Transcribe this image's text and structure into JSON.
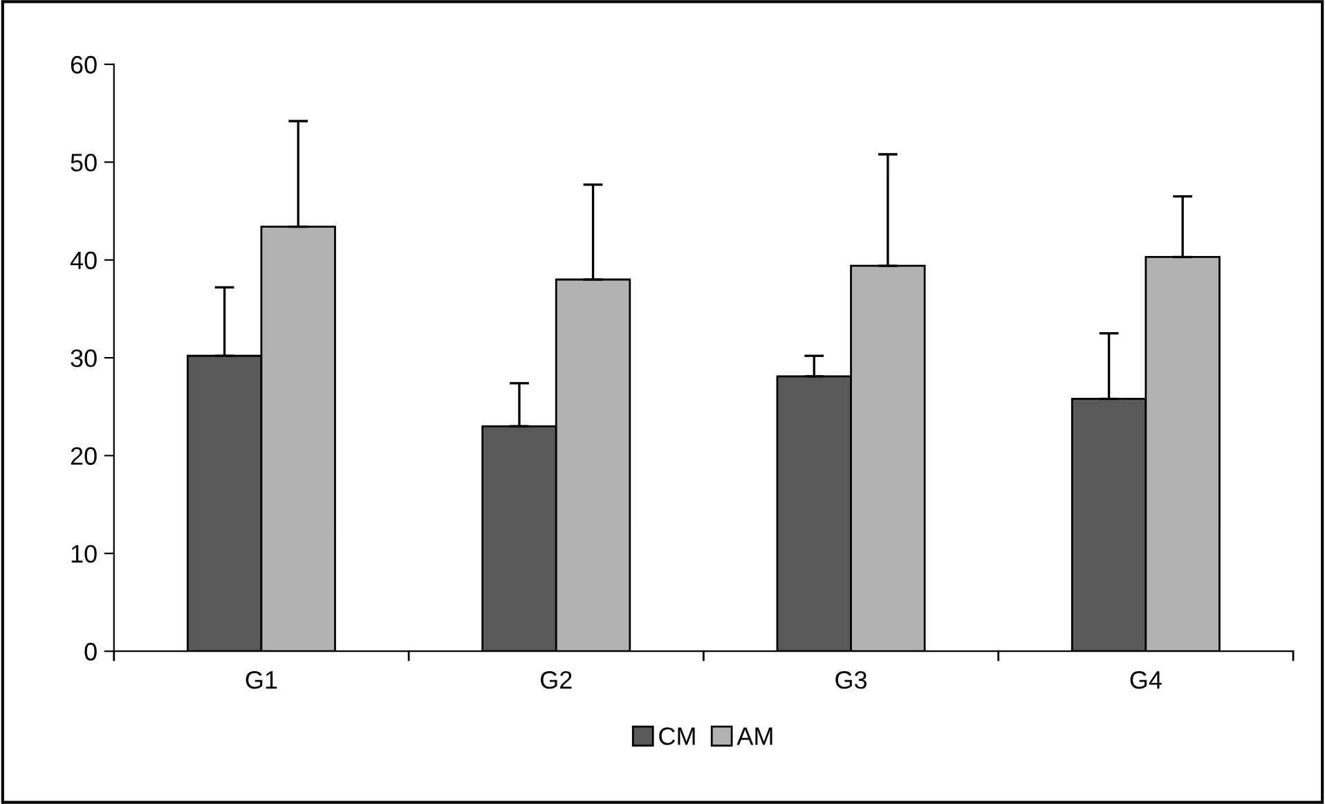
{
  "chart_data": {
    "type": "bar",
    "categories": [
      "G1",
      "G2",
      "G3",
      "G4"
    ],
    "series": [
      {
        "name": "CM",
        "color": "#595959",
        "values": [
          30.2,
          23.0,
          28.1,
          25.8
        ],
        "errors": [
          [
            30.2,
            37.2
          ],
          [
            23.0,
            27.4
          ],
          [
            28.1,
            30.2
          ],
          [
            25.8,
            32.5
          ]
        ]
      },
      {
        "name": "AM",
        "color": "#b2b2b2",
        "values": [
          43.4,
          38.0,
          39.4,
          40.3
        ],
        "errors": [
          [
            43.4,
            54.2
          ],
          [
            38.0,
            47.7
          ],
          [
            39.4,
            50.8
          ],
          [
            40.3,
            46.5
          ]
        ]
      }
    ],
    "ylim": [
      0,
      60
    ],
    "yticks": [
      0,
      10,
      20,
      30,
      40,
      50,
      60
    ],
    "grid": false,
    "legend": "bottom"
  }
}
